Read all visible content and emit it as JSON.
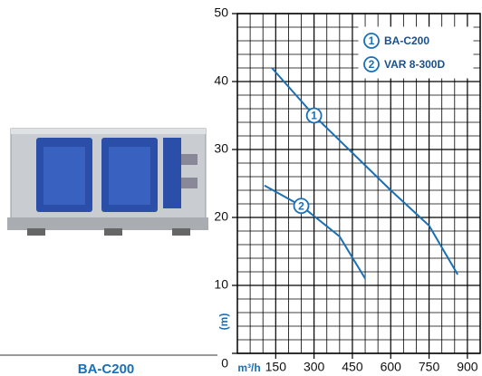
{
  "product": "BA-C200",
  "chart_data": {
    "type": "line",
    "x_label": "m³/h",
    "y_label": "(m)",
    "xlim": [
      0,
      950
    ],
    "ylim": [
      0,
      50
    ],
    "xticks": [
      150,
      300,
      450,
      600,
      750,
      900
    ],
    "yticks": [
      0,
      10,
      20,
      30,
      40,
      50
    ],
    "grid": true,
    "series": [
      {
        "name": "BA-C200",
        "label": "1",
        "color": "#1a6fb5",
        "x": [
          135,
          300,
          450,
          600,
          750,
          862
        ],
        "values": [
          42,
          35,
          29.5,
          24,
          18.8,
          11.6
        ]
      },
      {
        "name": "VAR 8-300D",
        "label": "2",
        "color": "#1a6fb5",
        "x": [
          106,
          250,
          400,
          500
        ],
        "values": [
          24.7,
          21.7,
          17.2,
          11
        ]
      }
    ]
  }
}
